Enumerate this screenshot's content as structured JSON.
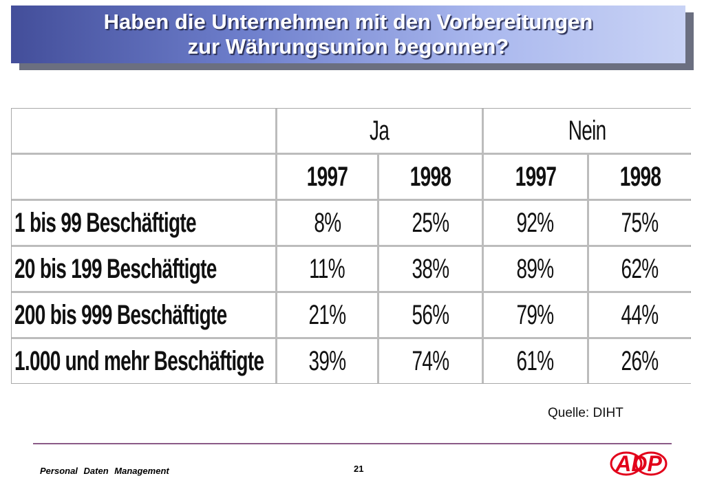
{
  "title": {
    "line1": "Haben die Unternehmen mit den Vorbereitungen",
    "line2": "zur Währungsunion begonnen?"
  },
  "table": {
    "groups": [
      "Ja",
      "Nein"
    ],
    "years": [
      "1997",
      "1998",
      "1997",
      "1998"
    ],
    "rows": [
      {
        "label": "1 bis 99 Beschäftigte",
        "values": [
          "8%",
          "25%",
          "92%",
          "75%"
        ]
      },
      {
        "label": "20 bis 199 Beschäftigte",
        "values": [
          "11%",
          "38%",
          "89%",
          "62%"
        ]
      },
      {
        "label": "200 bis 999 Beschäftigte",
        "values": [
          "21%",
          "56%",
          "79%",
          "44%"
        ]
      },
      {
        "label": "1.000 und mehr Beschäftigte",
        "values": [
          "39%",
          "74%",
          "61%",
          "26%"
        ]
      }
    ]
  },
  "source": "Quelle: DIHT",
  "footer": {
    "left": "Personal Daten Management",
    "page": "21",
    "logo_text": "ADP",
    "logo_color": "#e2001a"
  },
  "colors": {
    "title_gradient_start": "#434e9a",
    "title_gradient_end": "#c9d3f5",
    "footer_rule": "#8a5a86"
  }
}
